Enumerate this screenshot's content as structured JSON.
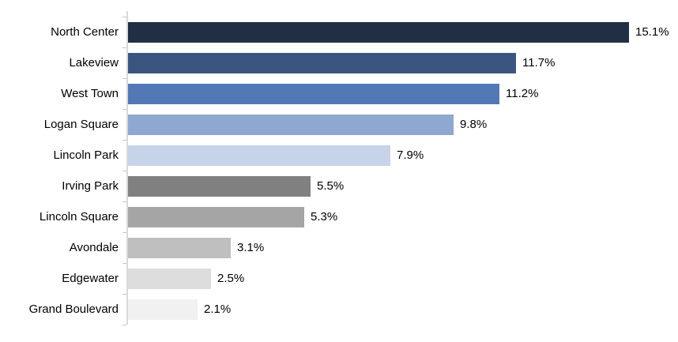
{
  "chart_data": {
    "type": "bar",
    "orientation": "horizontal",
    "title": "",
    "xlabel": "",
    "ylabel": "",
    "categories": [
      "North Center",
      "Lakeview",
      "West Town",
      "Logan Square",
      "Lincoln Park",
      "Irving Park",
      "Lincoln Square",
      "Avondale",
      "Edgewater",
      "Grand Boulevard"
    ],
    "values": [
      15.1,
      11.7,
      11.2,
      9.8,
      7.9,
      5.5,
      5.3,
      3.1,
      2.5,
      2.1
    ],
    "value_labels": [
      "15.1%",
      "11.7%",
      "11.2%",
      "9.8%",
      "7.9%",
      "5.5%",
      "5.3%",
      "3.1%",
      "2.5%",
      "2.1%"
    ],
    "bar_colors": [
      "#212F44",
      "#3A5680",
      "#5279B5",
      "#8FA8D2",
      "#C7D3E8",
      "#808080",
      "#A5A5A5",
      "#BFBFBF",
      "#DDDDDD",
      "#F1F1F1"
    ],
    "xlim": [
      0,
      16.4
    ],
    "grid": false,
    "legend": false,
    "axis_line_color": "#D9D9D9",
    "tick_color": "#C8C8C8",
    "text_color": "#000000",
    "background": "#FFFFFF"
  }
}
